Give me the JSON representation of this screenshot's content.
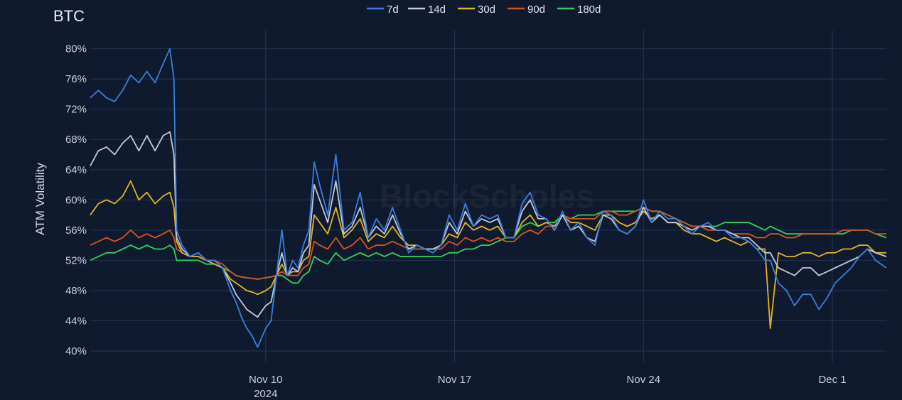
{
  "chart_data": {
    "type": "line",
    "title": "BTC",
    "ylabel": "ATM Volatility",
    "xlabel": "",
    "watermark": "BlockScholes",
    "ylim": [
      0.385,
      0.825
    ],
    "xlim": [
      0,
      29.5
    ],
    "y_ticks": [
      {
        "v": 0.4,
        "label": "40%"
      },
      {
        "v": 0.44,
        "label": "44%"
      },
      {
        "v": 0.48,
        "label": "48%"
      },
      {
        "v": 0.52,
        "label": "52%"
      },
      {
        "v": 0.56,
        "label": "56%"
      },
      {
        "v": 0.6,
        "label": "60%"
      },
      {
        "v": 0.64,
        "label": "64%"
      },
      {
        "v": 0.68,
        "label": "68%"
      },
      {
        "v": 0.72,
        "label": "72%"
      },
      {
        "v": 0.76,
        "label": "76%"
      },
      {
        "v": 0.8,
        "label": "80%"
      }
    ],
    "x_ticks": [
      {
        "v": 6.5,
        "label": "Nov 10",
        "sublabel": "2024"
      },
      {
        "v": 13.5,
        "label": "Nov 17",
        "sublabel": ""
      },
      {
        "v": 20.5,
        "label": "Nov 24",
        "sublabel": ""
      },
      {
        "v": 27.5,
        "label": "Dec 1",
        "sublabel": ""
      }
    ],
    "grid": true,
    "legend_position": "top-center",
    "series": [
      {
        "name": "7d",
        "color": "#3b7ddd",
        "x": [
          0,
          0.3,
          0.6,
          0.9,
          1.2,
          1.5,
          1.8,
          2.1,
          2.4,
          2.7,
          2.95,
          3.1,
          3.2,
          3.4,
          3.7,
          4,
          4.3,
          4.6,
          4.9,
          5.2,
          5.4,
          5.6,
          5.8,
          6,
          6.2,
          6.5,
          6.7,
          6.9,
          7.1,
          7.3,
          7.5,
          7.7,
          7.9,
          8.1,
          8.3,
          8.5,
          8.8,
          9.1,
          9.4,
          9.7,
          10,
          10.3,
          10.6,
          10.9,
          11.2,
          11.5,
          11.8,
          12.1,
          12.4,
          12.7,
          13,
          13.3,
          13.6,
          13.9,
          14.2,
          14.5,
          14.8,
          15.1,
          15.4,
          15.7,
          16,
          16.3,
          16.6,
          16.9,
          17.2,
          17.5,
          17.8,
          18.1,
          18.4,
          18.7,
          19,
          19.3,
          19.6,
          19.9,
          20.2,
          20.5,
          20.8,
          21.1,
          21.4,
          21.7,
          22,
          22.3,
          22.6,
          22.9,
          23.2,
          23.5,
          23.8,
          24.1,
          24.4,
          24.7,
          25,
          25.2,
          25.5,
          25.8,
          26.1,
          26.4,
          26.7,
          27,
          27.3,
          27.6,
          27.9,
          28.2,
          28.5,
          28.8,
          29.1,
          29.5
        ],
        "y": [
          0.735,
          0.745,
          0.735,
          0.73,
          0.745,
          0.765,
          0.755,
          0.77,
          0.755,
          0.78,
          0.8,
          0.76,
          0.56,
          0.54,
          0.525,
          0.53,
          0.52,
          0.52,
          0.51,
          0.48,
          0.465,
          0.445,
          0.43,
          0.42,
          0.405,
          0.43,
          0.44,
          0.5,
          0.56,
          0.5,
          0.52,
          0.51,
          0.54,
          0.56,
          0.65,
          0.62,
          0.58,
          0.66,
          0.56,
          0.57,
          0.61,
          0.55,
          0.575,
          0.56,
          0.59,
          0.56,
          0.53,
          0.54,
          0.535,
          0.53,
          0.54,
          0.58,
          0.56,
          0.595,
          0.565,
          0.58,
          0.575,
          0.58,
          0.55,
          0.55,
          0.595,
          0.61,
          0.58,
          0.575,
          0.56,
          0.585,
          0.56,
          0.57,
          0.55,
          0.54,
          0.585,
          0.58,
          0.56,
          0.555,
          0.565,
          0.6,
          0.57,
          0.585,
          0.575,
          0.575,
          0.565,
          0.555,
          0.565,
          0.57,
          0.56,
          0.56,
          0.55,
          0.55,
          0.545,
          0.535,
          0.52,
          0.52,
          0.49,
          0.48,
          0.46,
          0.475,
          0.475,
          0.455,
          0.47,
          0.49,
          0.5,
          0.51,
          0.525,
          0.535,
          0.52,
          0.51
        ]
      },
      {
        "name": "14d",
        "color": "#c4cad6",
        "x": [
          0,
          0.3,
          0.6,
          0.9,
          1.2,
          1.5,
          1.8,
          2.1,
          2.4,
          2.7,
          2.95,
          3.1,
          3.2,
          3.4,
          3.7,
          4,
          4.3,
          4.6,
          4.9,
          5.2,
          5.4,
          5.6,
          5.8,
          6,
          6.2,
          6.5,
          6.7,
          6.9,
          7.1,
          7.3,
          7.5,
          7.7,
          7.9,
          8.1,
          8.3,
          8.5,
          8.8,
          9.1,
          9.4,
          9.7,
          10,
          10.3,
          10.6,
          10.9,
          11.2,
          11.5,
          11.8,
          12.1,
          12.4,
          12.7,
          13,
          13.3,
          13.6,
          13.9,
          14.2,
          14.5,
          14.8,
          15.1,
          15.4,
          15.7,
          16,
          16.3,
          16.6,
          16.9,
          17.2,
          17.5,
          17.8,
          18.1,
          18.4,
          18.7,
          19,
          19.3,
          19.6,
          19.9,
          20.2,
          20.5,
          20.8,
          21.1,
          21.4,
          21.7,
          22,
          22.3,
          22.6,
          22.9,
          23.2,
          23.5,
          23.8,
          24.1,
          24.4,
          24.7,
          25,
          25.2,
          25.5,
          25.8,
          26.1,
          26.4,
          26.7,
          27,
          27.3,
          27.6,
          27.9,
          28.2,
          28.5,
          28.8,
          29.1,
          29.5
        ],
        "y": [
          0.645,
          0.665,
          0.67,
          0.66,
          0.675,
          0.685,
          0.665,
          0.685,
          0.665,
          0.685,
          0.69,
          0.66,
          0.55,
          0.535,
          0.525,
          0.53,
          0.52,
          0.52,
          0.51,
          0.49,
          0.475,
          0.465,
          0.455,
          0.45,
          0.445,
          0.46,
          0.465,
          0.5,
          0.53,
          0.5,
          0.51,
          0.505,
          0.53,
          0.54,
          0.62,
          0.6,
          0.57,
          0.625,
          0.555,
          0.565,
          0.59,
          0.55,
          0.565,
          0.555,
          0.58,
          0.555,
          0.535,
          0.54,
          0.535,
          0.535,
          0.54,
          0.57,
          0.555,
          0.585,
          0.565,
          0.575,
          0.57,
          0.575,
          0.55,
          0.55,
          0.585,
          0.6,
          0.575,
          0.575,
          0.56,
          0.58,
          0.56,
          0.565,
          0.55,
          0.545,
          0.58,
          0.575,
          0.56,
          0.555,
          0.565,
          0.59,
          0.57,
          0.58,
          0.57,
          0.57,
          0.565,
          0.56,
          0.565,
          0.565,
          0.56,
          0.56,
          0.555,
          0.55,
          0.55,
          0.54,
          0.53,
          0.53,
          0.51,
          0.505,
          0.5,
          0.51,
          0.51,
          0.5,
          0.505,
          0.51,
          0.515,
          0.52,
          0.525,
          0.535,
          0.53,
          0.525
        ]
      },
      {
        "name": "30d",
        "color": "#e3b420",
        "x": [
          0,
          0.3,
          0.6,
          0.9,
          1.2,
          1.5,
          1.8,
          2.1,
          2.4,
          2.7,
          2.95,
          3.1,
          3.2,
          3.4,
          3.7,
          4,
          4.3,
          4.6,
          4.9,
          5.2,
          5.4,
          5.6,
          5.8,
          6,
          6.2,
          6.5,
          6.7,
          6.9,
          7.1,
          7.3,
          7.5,
          7.7,
          7.9,
          8.1,
          8.3,
          8.5,
          8.8,
          9.1,
          9.4,
          9.7,
          10,
          10.3,
          10.6,
          10.9,
          11.2,
          11.5,
          11.8,
          12.1,
          12.4,
          12.7,
          13,
          13.3,
          13.6,
          13.9,
          14.2,
          14.5,
          14.8,
          15.1,
          15.4,
          15.7,
          16,
          16.3,
          16.6,
          16.9,
          17.2,
          17.5,
          17.8,
          18.1,
          18.4,
          18.7,
          19,
          19.3,
          19.6,
          19.9,
          20.2,
          20.5,
          20.8,
          21.1,
          21.4,
          21.7,
          22,
          22.3,
          22.6,
          22.9,
          23.2,
          23.5,
          23.8,
          24.1,
          24.4,
          24.7,
          25,
          25.2,
          25.5,
          25.8,
          26.1,
          26.4,
          26.7,
          27,
          27.3,
          27.6,
          27.9,
          28.2,
          28.5,
          28.8,
          29.1,
          29.5
        ],
        "y": [
          0.58,
          0.595,
          0.6,
          0.595,
          0.605,
          0.625,
          0.6,
          0.61,
          0.595,
          0.605,
          0.61,
          0.59,
          0.545,
          0.53,
          0.525,
          0.525,
          0.52,
          0.515,
          0.51,
          0.495,
          0.49,
          0.485,
          0.48,
          0.478,
          0.475,
          0.48,
          0.485,
          0.5,
          0.515,
          0.5,
          0.505,
          0.505,
          0.52,
          0.525,
          0.58,
          0.57,
          0.555,
          0.59,
          0.55,
          0.56,
          0.575,
          0.545,
          0.555,
          0.55,
          0.565,
          0.55,
          0.54,
          0.54,
          0.535,
          0.535,
          0.54,
          0.555,
          0.55,
          0.57,
          0.56,
          0.565,
          0.56,
          0.565,
          0.55,
          0.55,
          0.57,
          0.58,
          0.565,
          0.57,
          0.565,
          0.58,
          0.57,
          0.57,
          0.565,
          0.56,
          0.58,
          0.58,
          0.57,
          0.565,
          0.57,
          0.585,
          0.575,
          0.58,
          0.57,
          0.57,
          0.56,
          0.555,
          0.555,
          0.55,
          0.545,
          0.55,
          0.545,
          0.54,
          0.545,
          0.535,
          0.535,
          0.43,
          0.53,
          0.525,
          0.525,
          0.53,
          0.53,
          0.525,
          0.53,
          0.53,
          0.535,
          0.535,
          0.54,
          0.54,
          0.53,
          0.53
        ]
      },
      {
        "name": "90d",
        "color": "#d9541c",
        "x": [
          0,
          0.3,
          0.6,
          0.9,
          1.2,
          1.5,
          1.8,
          2.1,
          2.4,
          2.7,
          2.95,
          3.1,
          3.2,
          3.4,
          3.7,
          4,
          4.3,
          4.6,
          4.9,
          5.2,
          5.4,
          5.6,
          5.8,
          6,
          6.2,
          6.5,
          6.7,
          6.9,
          7.1,
          7.3,
          7.5,
          7.7,
          7.9,
          8.1,
          8.3,
          8.5,
          8.8,
          9.1,
          9.4,
          9.7,
          10,
          10.3,
          10.6,
          10.9,
          11.2,
          11.5,
          11.8,
          12.1,
          12.4,
          12.7,
          13,
          13.3,
          13.6,
          13.9,
          14.2,
          14.5,
          14.8,
          15.1,
          15.4,
          15.7,
          16,
          16.3,
          16.6,
          16.9,
          17.2,
          17.5,
          17.8,
          18.1,
          18.4,
          18.7,
          19,
          19.3,
          19.6,
          19.9,
          20.2,
          20.5,
          20.8,
          21.1,
          21.4,
          21.7,
          22,
          22.3,
          22.6,
          22.9,
          23.2,
          23.5,
          23.8,
          24.1,
          24.4,
          24.7,
          25,
          25.2,
          25.5,
          25.8,
          26.1,
          26.4,
          26.7,
          27,
          27.3,
          27.6,
          27.9,
          28.2,
          28.5,
          28.8,
          29.1,
          29.5
        ],
        "y": [
          0.54,
          0.545,
          0.55,
          0.545,
          0.55,
          0.56,
          0.55,
          0.555,
          0.55,
          0.555,
          0.56,
          0.55,
          0.535,
          0.53,
          0.525,
          0.525,
          0.52,
          0.52,
          0.515,
          0.505,
          0.5,
          0.498,
          0.497,
          0.496,
          0.495,
          0.497,
          0.498,
          0.5,
          0.505,
          0.5,
          0.5,
          0.5,
          0.51,
          0.515,
          0.545,
          0.54,
          0.535,
          0.55,
          0.535,
          0.54,
          0.55,
          0.535,
          0.54,
          0.54,
          0.545,
          0.54,
          0.535,
          0.535,
          0.535,
          0.535,
          0.535,
          0.545,
          0.54,
          0.55,
          0.545,
          0.55,
          0.545,
          0.55,
          0.545,
          0.545,
          0.555,
          0.56,
          0.555,
          0.565,
          0.565,
          0.58,
          0.575,
          0.575,
          0.575,
          0.575,
          0.585,
          0.585,
          0.58,
          0.58,
          0.585,
          0.59,
          0.585,
          0.585,
          0.58,
          0.575,
          0.57,
          0.565,
          0.565,
          0.56,
          0.56,
          0.56,
          0.555,
          0.555,
          0.555,
          0.55,
          0.55,
          0.555,
          0.555,
          0.55,
          0.55,
          0.555,
          0.555,
          0.555,
          0.555,
          0.555,
          0.56,
          0.56,
          0.56,
          0.56,
          0.555,
          0.555
        ]
      },
      {
        "name": "180d",
        "color": "#2fd15c",
        "x": [
          0,
          0.3,
          0.6,
          0.9,
          1.2,
          1.5,
          1.8,
          2.1,
          2.4,
          2.7,
          2.95,
          3.1,
          3.2,
          3.4,
          3.7,
          4,
          4.3,
          4.6,
          4.9,
          5.2,
          5.4,
          5.6,
          5.8,
          6,
          6.2,
          6.5,
          6.7,
          6.9,
          7.1,
          7.3,
          7.5,
          7.7,
          7.9,
          8.1,
          8.3,
          8.5,
          8.8,
          9.1,
          9.4,
          9.7,
          10,
          10.3,
          10.6,
          10.9,
          11.2,
          11.5,
          11.8,
          12.1,
          12.4,
          12.7,
          13,
          13.3,
          13.6,
          13.9,
          14.2,
          14.5,
          14.8,
          15.1,
          15.4,
          15.7,
          16,
          16.3,
          16.6,
          16.9,
          17.2,
          17.5,
          17.8,
          18.1,
          18.4,
          18.7,
          19,
          19.3,
          19.6,
          19.9,
          20.2,
          20.5,
          20.8,
          21.1,
          21.4,
          21.7,
          22,
          22.3,
          22.6,
          22.9,
          23.2,
          23.5,
          23.8,
          24.1,
          24.4,
          24.7,
          25,
          25.2,
          25.5,
          25.8,
          26.1,
          26.4,
          26.7,
          27,
          27.3,
          27.6,
          27.9,
          28.2,
          28.5,
          28.8,
          29.1,
          29.5
        ],
        "y": [
          0.52,
          0.525,
          0.53,
          0.53,
          0.535,
          0.54,
          0.535,
          0.54,
          0.535,
          0.535,
          0.54,
          0.535,
          0.52,
          0.52,
          0.52,
          0.52,
          0.515,
          0.515,
          0.51,
          0.505,
          0.5,
          0.498,
          0.497,
          0.496,
          0.495,
          0.497,
          0.498,
          0.5,
          0.5,
          0.495,
          0.49,
          0.49,
          0.5,
          0.505,
          0.525,
          0.52,
          0.515,
          0.53,
          0.52,
          0.525,
          0.53,
          0.525,
          0.53,
          0.525,
          0.53,
          0.525,
          0.525,
          0.525,
          0.525,
          0.525,
          0.525,
          0.53,
          0.53,
          0.535,
          0.535,
          0.54,
          0.54,
          0.545,
          0.55,
          0.55,
          0.565,
          0.57,
          0.565,
          0.57,
          0.57,
          0.58,
          0.575,
          0.58,
          0.58,
          0.58,
          0.585,
          0.585,
          0.585,
          0.585,
          0.585,
          0.59,
          0.585,
          0.585,
          0.58,
          0.575,
          0.57,
          0.565,
          0.565,
          0.565,
          0.565,
          0.57,
          0.57,
          0.57,
          0.57,
          0.565,
          0.56,
          0.565,
          0.56,
          0.555,
          0.555,
          0.555,
          0.555,
          0.555,
          0.555,
          0.555,
          0.555,
          0.56,
          0.56,
          0.56,
          0.555,
          0.55
        ]
      }
    ]
  }
}
